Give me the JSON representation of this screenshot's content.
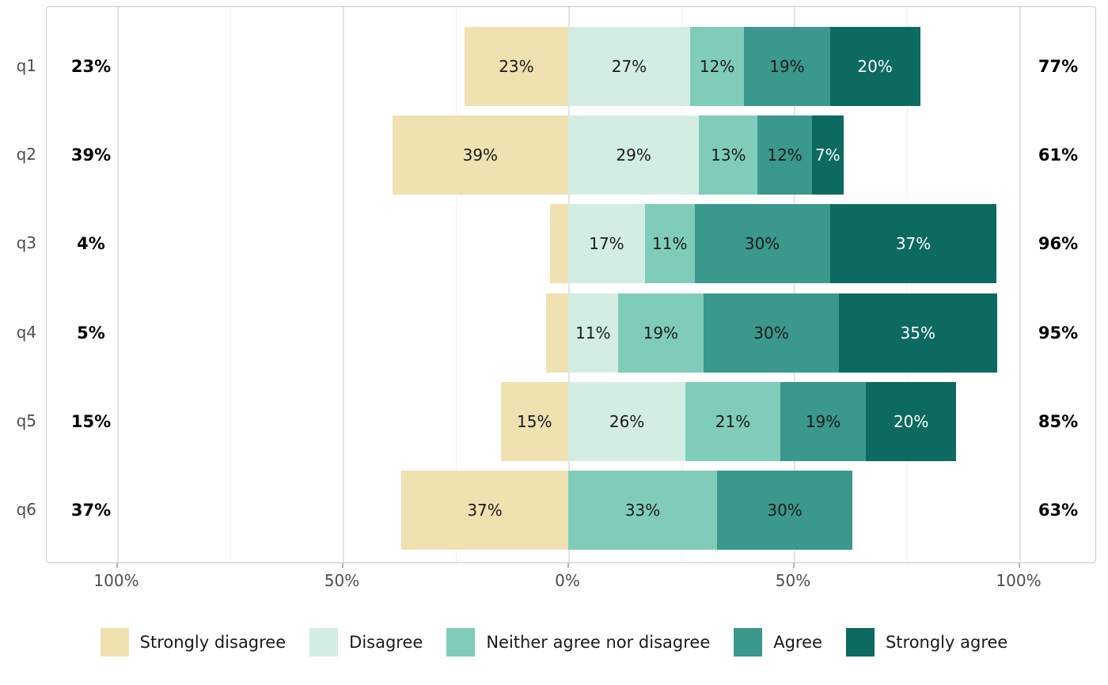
{
  "chart_data": {
    "type": "bar",
    "subtype": "diverging-stacked-likert",
    "title": "",
    "xlabel": "",
    "ylabel": "",
    "grid": true,
    "legend_position": "bottom",
    "categories": [
      "Strongly disagree",
      "Disagree",
      "Neither agree nor disagree",
      "Agree",
      "Strongly agree"
    ],
    "colors": [
      "#f0e1b1",
      "#d3ede3",
      "#80ccba",
      "#3a988c",
      "#0c6a60"
    ],
    "segment_label_colors": [
      "#1a1a1a",
      "#1a1a1a",
      "#1a1a1a",
      "#1a1a1a",
      "#ffffff"
    ],
    "axis": {
      "tick_values": [
        -100,
        -50,
        0,
        50,
        100
      ],
      "tick_labels": [
        "100%",
        "50%",
        "0%",
        "50%",
        "100%"
      ],
      "minor_tick_values": [
        -75,
        -25,
        25,
        75
      ],
      "range_percent": [
        -116,
        118
      ]
    },
    "rows": [
      {
        "question": "q1",
        "neg_total": "23%",
        "pos_total": "77%",
        "values": [
          23,
          27,
          12,
          19,
          20
        ],
        "segment_labels": [
          "23%",
          "27%",
          "12%",
          "19%",
          "20%"
        ]
      },
      {
        "question": "q2",
        "neg_total": "39%",
        "pos_total": "61%",
        "values": [
          39,
          29,
          13,
          12,
          7
        ],
        "segment_labels": [
          "39%",
          "29%",
          "13%",
          "12%",
          "7%"
        ]
      },
      {
        "question": "q3",
        "neg_total": "4%",
        "pos_total": "96%",
        "values": [
          4,
          17,
          11,
          30,
          37
        ],
        "segment_labels": [
          "",
          "17%",
          "11%",
          "30%",
          "37%"
        ]
      },
      {
        "question": "q4",
        "neg_total": "5%",
        "pos_total": "95%",
        "values": [
          5,
          11,
          19,
          30,
          35
        ],
        "segment_labels": [
          "",
          "11%",
          "19%",
          "30%",
          "35%"
        ]
      },
      {
        "question": "q5",
        "neg_total": "15%",
        "pos_total": "85%",
        "values": [
          15,
          26,
          21,
          19,
          20
        ],
        "segment_labels": [
          "15%",
          "26%",
          "21%",
          "19%",
          "20%"
        ]
      },
      {
        "question": "q6",
        "neg_total": "37%",
        "pos_total": "63%",
        "values": [
          37,
          0,
          33,
          30,
          0
        ],
        "segment_labels": [
          "37%",
          "",
          "33%",
          "30%",
          ""
        ]
      }
    ]
  },
  "style_colors": {
    "axis_text": "#4d4d4d",
    "totals_text": "#000000",
    "legend_text": "#1a1a1a",
    "panel_border": "#c9c9c9",
    "grid_major": "#e4e4e4",
    "grid_minor": "#f0f0f0"
  }
}
